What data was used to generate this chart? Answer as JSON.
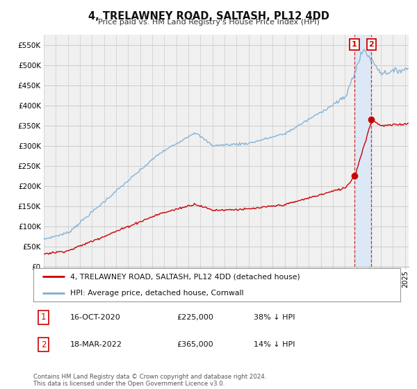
{
  "title": "4, TRELAWNEY ROAD, SALTASH, PL12 4DD",
  "subtitle": "Price paid vs. HM Land Registry's House Price Index (HPI)",
  "ylabel_ticks": [
    "£0",
    "£50K",
    "£100K",
    "£150K",
    "£200K",
    "£250K",
    "£300K",
    "£350K",
    "£400K",
    "£450K",
    "£500K",
    "£550K"
  ],
  "ytick_values": [
    0,
    50000,
    100000,
    150000,
    200000,
    250000,
    300000,
    350000,
    400000,
    450000,
    500000,
    550000
  ],
  "ylim": [
    0,
    575000
  ],
  "xlim_start": 1995.0,
  "xlim_end": 2025.3,
  "legend_line1": "4, TRELAWNEY ROAD, SALTASH, PL12 4DD (detached house)",
  "legend_line2": "HPI: Average price, detached house, Cornwall",
  "legend_color1": "#cc0000",
  "legend_color2": "#7aadd4",
  "transaction1_date": "16-OCT-2020",
  "transaction1_price": "£225,000",
  "transaction1_pct": "38% ↓ HPI",
  "transaction1_year": 2020.79,
  "transaction1_value": 225000,
  "transaction2_date": "18-MAR-2022",
  "transaction2_price": "£365,000",
  "transaction2_pct": "14% ↓ HPI",
  "transaction2_year": 2022.21,
  "transaction2_value": 365000,
  "footer": "Contains HM Land Registry data © Crown copyright and database right 2024.\nThis data is licensed under the Open Government Licence v3.0.",
  "background_color": "#ffffff",
  "plot_bg_color": "#f0f0f0",
  "grid_color": "#cccccc",
  "shaded_region_color": "#dce8f5"
}
